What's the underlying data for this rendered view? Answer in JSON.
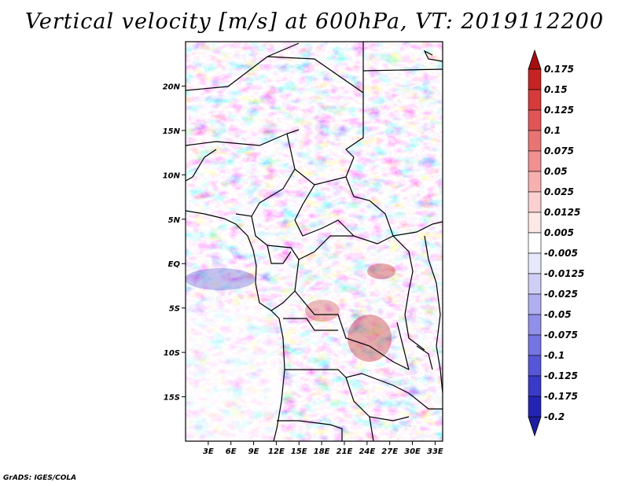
{
  "title": "Vertical velocity [m/s] at 600hPa, VT: 2019112200",
  "footer": "GrADS: IGES/COLA",
  "map": {
    "lon_range": [
      0,
      34
    ],
    "lat_range": [
      -20,
      25
    ],
    "lat_ticks": [
      {
        "value": 20,
        "label": "20N"
      },
      {
        "value": 15,
        "label": "15N"
      },
      {
        "value": 10,
        "label": "10N"
      },
      {
        "value": 5,
        "label": "5N"
      },
      {
        "value": 0,
        "label": "EQ"
      },
      {
        "value": -5,
        "label": "5S"
      },
      {
        "value": -10,
        "label": "10S"
      },
      {
        "value": -15,
        "label": "15S"
      }
    ],
    "lon_ticks": [
      {
        "value": 3,
        "label": "3E"
      },
      {
        "value": 6,
        "label": "6E"
      },
      {
        "value": 9,
        "label": "9E"
      },
      {
        "value": 12,
        "label": "12E"
      },
      {
        "value": 15,
        "label": "15E"
      },
      {
        "value": 18,
        "label": "18E"
      },
      {
        "value": 21,
        "label": "21E"
      },
      {
        "value": 24,
        "label": "24E"
      },
      {
        "value": 27,
        "label": "27E"
      },
      {
        "value": 30,
        "label": "30E"
      },
      {
        "value": 33,
        "label": "33E"
      }
    ],
    "field": "vertical velocity, shaded red (positive) / blue (negative)"
  },
  "colorbar": {
    "levels": [
      {
        "label": "0.175",
        "color": "#b41414"
      },
      {
        "label": "0.15",
        "color": "#c62424"
      },
      {
        "label": "0.125",
        "color": "#d63a3a"
      },
      {
        "label": "0.1",
        "color": "#e05656"
      },
      {
        "label": "0.075",
        "color": "#e87474"
      },
      {
        "label": "0.05",
        "color": "#f09090"
      },
      {
        "label": "0.025",
        "color": "#f6b0b0"
      },
      {
        "label": "0.0125",
        "color": "#fad0d0"
      },
      {
        "label": "0.005",
        "color": "#fde8e8"
      },
      {
        "label": "-0.005",
        "color": "#ffffff"
      },
      {
        "label": "-0.0125",
        "color": "#e8e8fb"
      },
      {
        "label": "-0.025",
        "color": "#cfcff6"
      },
      {
        "label": "-0.05",
        "color": "#b0b0f0"
      },
      {
        "label": "-0.075",
        "color": "#9090ea"
      },
      {
        "label": "-0.1",
        "color": "#7474e2"
      },
      {
        "label": "-0.125",
        "color": "#5656d8"
      },
      {
        "label": "-0.175",
        "color": "#3a3ac8"
      },
      {
        "label": "-0.2",
        "color": "#2424b4"
      }
    ],
    "top_triangle_color": "#a50f0f",
    "bottom_triangle_color": "#1e1ea0"
  }
}
